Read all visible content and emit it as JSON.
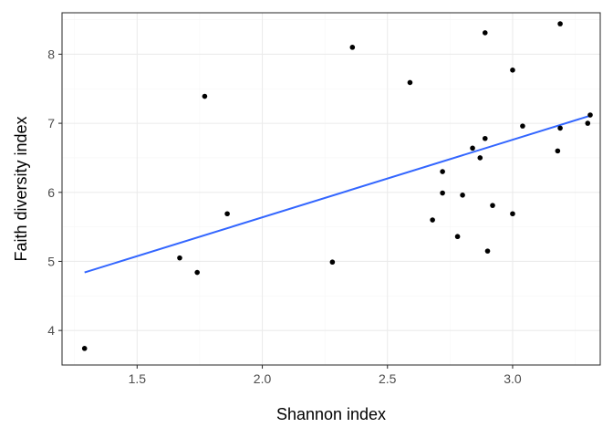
{
  "chart_data": {
    "type": "scatter",
    "xlabel": "Shannon index",
    "ylabel": "Faith diversity index",
    "xlim": [
      1.2,
      3.35
    ],
    "ylim": [
      3.5,
      8.6
    ],
    "x_ticks": [
      1.5,
      2.0,
      2.5,
      3.0
    ],
    "x_tick_labels": [
      "1.5",
      "2.0",
      "2.5",
      "3.0"
    ],
    "y_ticks": [
      4,
      5,
      6,
      7,
      8
    ],
    "y_tick_labels": [
      "4",
      "5",
      "6",
      "7",
      "8"
    ],
    "grid": true,
    "points": [
      {
        "x": 1.29,
        "y": 3.74
      },
      {
        "x": 1.67,
        "y": 5.05
      },
      {
        "x": 1.74,
        "y": 4.84
      },
      {
        "x": 1.77,
        "y": 7.39
      },
      {
        "x": 1.86,
        "y": 5.69
      },
      {
        "x": 2.28,
        "y": 4.99
      },
      {
        "x": 2.36,
        "y": 8.1
      },
      {
        "x": 2.59,
        "y": 7.59
      },
      {
        "x": 2.68,
        "y": 5.6
      },
      {
        "x": 2.72,
        "y": 6.3
      },
      {
        "x": 2.72,
        "y": 5.99
      },
      {
        "x": 2.78,
        "y": 5.36
      },
      {
        "x": 2.8,
        "y": 5.96
      },
      {
        "x": 2.84,
        "y": 6.64
      },
      {
        "x": 2.87,
        "y": 6.5
      },
      {
        "x": 2.89,
        "y": 8.31
      },
      {
        "x": 2.89,
        "y": 6.78
      },
      {
        "x": 2.9,
        "y": 5.15
      },
      {
        "x": 2.92,
        "y": 5.81
      },
      {
        "x": 3.0,
        "y": 7.77
      },
      {
        "x": 3.0,
        "y": 5.69
      },
      {
        "x": 3.04,
        "y": 6.96
      },
      {
        "x": 3.18,
        "y": 6.6
      },
      {
        "x": 3.19,
        "y": 8.44
      },
      {
        "x": 3.19,
        "y": 6.93
      },
      {
        "x": 3.3,
        "y": 7.0
      },
      {
        "x": 3.31,
        "y": 7.12
      }
    ],
    "trend_line": {
      "x": [
        1.29,
        3.31
      ],
      "y": [
        4.84,
        7.11
      ],
      "color": "#3366ff"
    },
    "point_color": "#000000"
  }
}
